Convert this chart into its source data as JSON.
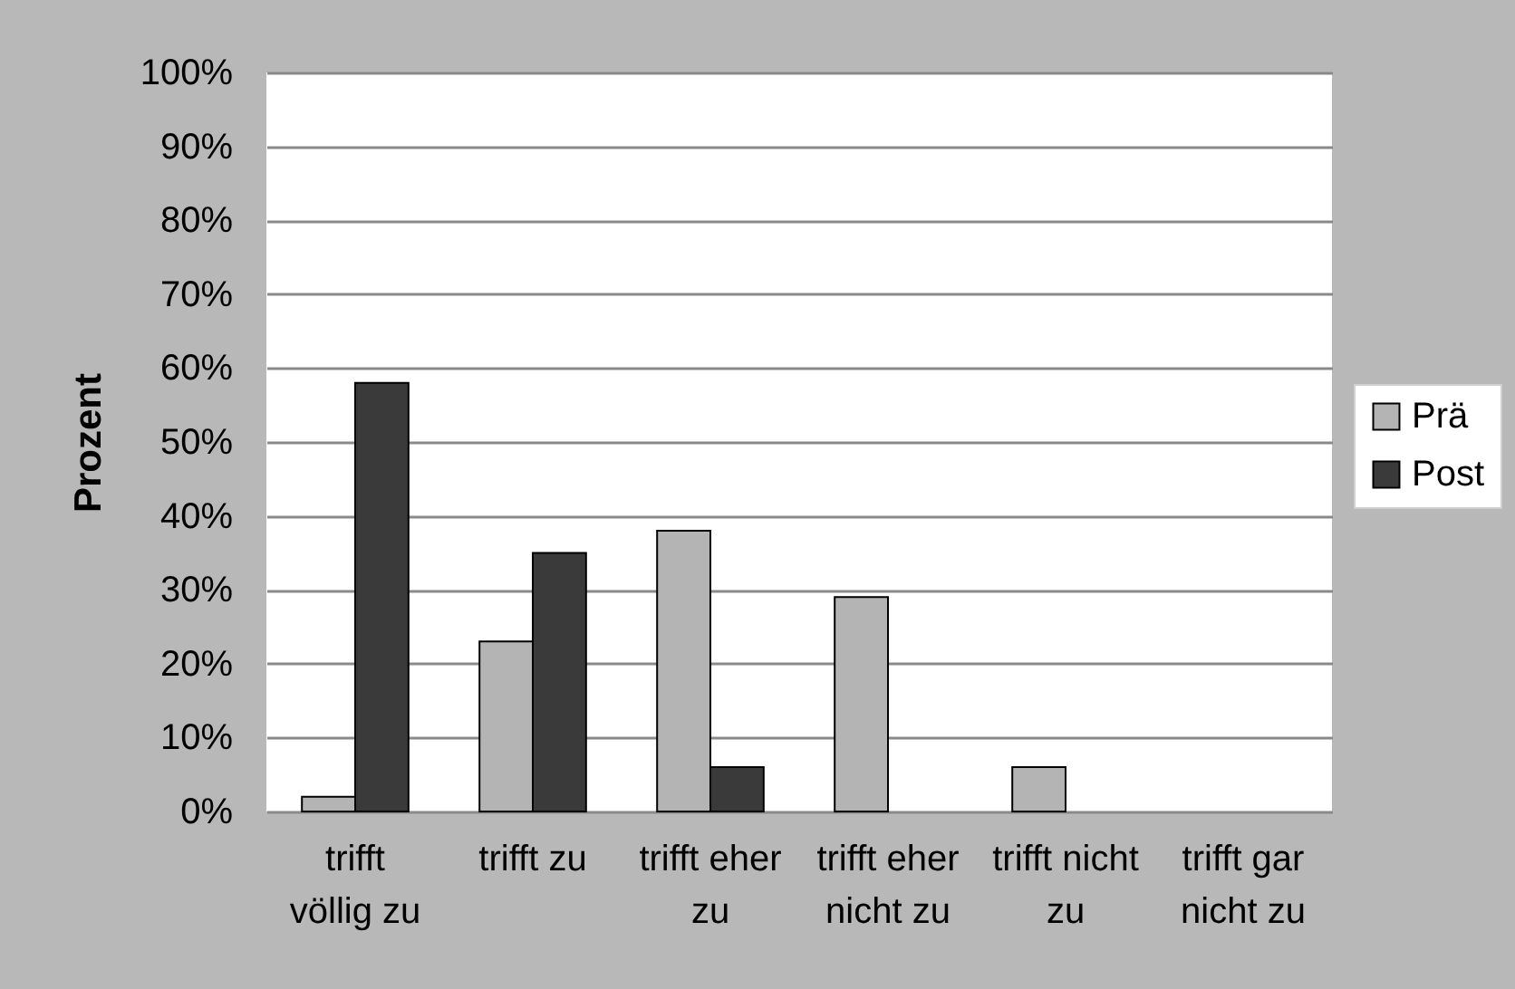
{
  "chart_data": {
    "type": "bar",
    "ylabel": "Prozent",
    "categories": [
      "trifft völlig zu",
      "trifft zu",
      "trifft eher zu",
      "trifft eher nicht zu",
      "trifft nicht zu",
      "trifft gar nicht zu"
    ],
    "series": [
      {
        "name": "Prä",
        "color": "#b4b4b4",
        "values": [
          2,
          23,
          38,
          29,
          6,
          0
        ]
      },
      {
        "name": "Post",
        "color": "#3a3a3a",
        "values": [
          58,
          35,
          6,
          0,
          0,
          0
        ]
      }
    ],
    "ylim": [
      0,
      100
    ],
    "yticks": [
      {
        "value": 0,
        "label": "0%"
      },
      {
        "value": 10,
        "label": "10%"
      },
      {
        "value": 20,
        "label": "20%"
      },
      {
        "value": 30,
        "label": "30%"
      },
      {
        "value": 40,
        "label": "40%"
      },
      {
        "value": 50,
        "label": "50%"
      },
      {
        "value": 60,
        "label": "60%"
      },
      {
        "value": 70,
        "label": "70%"
      },
      {
        "value": 80,
        "label": "80%"
      },
      {
        "value": 90,
        "label": "90%"
      },
      {
        "value": 100,
        "label": "100%"
      }
    ],
    "grid": "y",
    "legend": "right"
  }
}
